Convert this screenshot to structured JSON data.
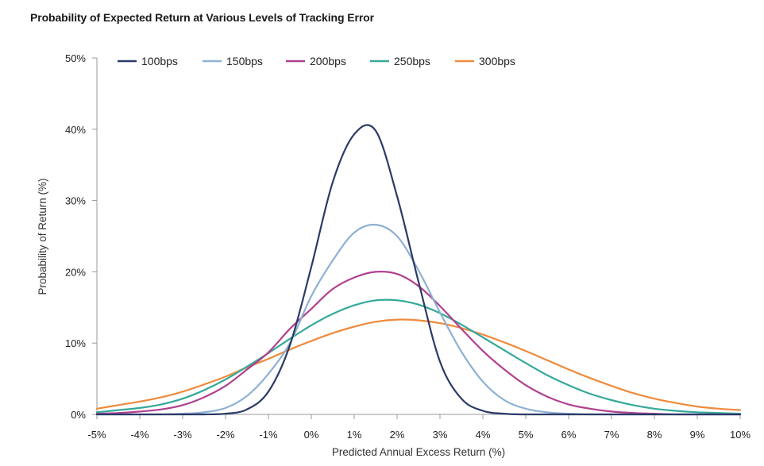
{
  "chart_data": {
    "type": "line",
    "title": "Probability of Expected Return at Various Levels of Tracking Error",
    "xlabel": "Predicted Annual Excess Return (%)",
    "ylabel": "Probability of Return (%)",
    "xlim": [
      -5,
      10
    ],
    "ylim": [
      0,
      50
    ],
    "x_ticks": [
      -5,
      -4,
      -3,
      -2,
      -1,
      0,
      1,
      2,
      3,
      4,
      5,
      6,
      7,
      8,
      9,
      10
    ],
    "x_tick_labels": [
      "-5%",
      "-4%",
      "-3%",
      "-2%",
      "-1%",
      "0%",
      "1%",
      "2%",
      "3%",
      "4%",
      "5%",
      "6%",
      "7%",
      "8%",
      "9%",
      "10%"
    ],
    "y_ticks": [
      0,
      10,
      20,
      30,
      40,
      50
    ],
    "y_tick_labels": [
      "0%",
      "10%",
      "20%",
      "30%",
      "40%",
      "50%"
    ],
    "grid": false,
    "legend_position": "top",
    "x": [
      -5,
      -4.5,
      -4,
      -3.5,
      -3,
      -2.5,
      -2,
      -1.5,
      -1,
      -0.5,
      0,
      0.5,
      1,
      1.5,
      2,
      2.5,
      3,
      3.5,
      4,
      4.5,
      5,
      5.5,
      6,
      6.5,
      7,
      7.5,
      8,
      8.5,
      9,
      9.5,
      10
    ],
    "series": [
      {
        "name": "100bps",
        "color": "#2b3a67",
        "values": [
          0,
          0,
          0,
          0,
          0,
          0,
          0.1,
          0.7,
          3.2,
          9.7,
          20.7,
          32.6,
          39.3,
          39.8,
          30.6,
          18.6,
          7.4,
          2.2,
          0.5,
          0.1,
          0,
          0,
          0,
          0,
          0,
          0,
          0,
          0,
          0,
          0,
          0
        ]
      },
      {
        "name": "150bps",
        "color": "#8eb1d3",
        "values": [
          0,
          0,
          0,
          0,
          0.1,
          0.3,
          0.9,
          2.6,
          5.7,
          10.0,
          16.6,
          21.6,
          25.5,
          26.6,
          25.0,
          20.2,
          14.3,
          8.8,
          4.6,
          2.0,
          0.8,
          0.3,
          0.1,
          0,
          0,
          0,
          0,
          0,
          0,
          0,
          0
        ]
      },
      {
        "name": "200bps",
        "color": "#b0408f",
        "values": [
          0.1,
          0.2,
          0.4,
          0.7,
          1.3,
          2.4,
          4.0,
          6.3,
          8.7,
          12.0,
          14.8,
          17.6,
          19.2,
          20.0,
          19.7,
          18.0,
          15.2,
          12.0,
          8.9,
          6.3,
          4.1,
          2.5,
          1.4,
          0.8,
          0.4,
          0.2,
          0.1,
          0,
          0,
          0,
          0
        ]
      },
      {
        "name": "250bps",
        "color": "#34a99a",
        "values": [
          0.3,
          0.6,
          0.9,
          1.4,
          2.2,
          3.4,
          4.9,
          6.7,
          8.6,
          10.6,
          12.5,
          14.1,
          15.3,
          16.0,
          16.0,
          15.4,
          14.2,
          12.6,
          10.8,
          9.0,
          7.2,
          5.5,
          4.1,
          2.9,
          2.0,
          1.3,
          0.8,
          0.5,
          0.3,
          0.2,
          0.1
        ]
      },
      {
        "name": "300bps",
        "color": "#ee8a3c",
        "values": [
          0.8,
          1.3,
          1.8,
          2.4,
          3.2,
          4.2,
          5.3,
          6.6,
          7.8,
          9.1,
          10.3,
          11.4,
          12.3,
          13.0,
          13.3,
          13.2,
          12.8,
          12.1,
          11.2,
          10.1,
          8.9,
          7.6,
          6.3,
          5.1,
          4.0,
          3.0,
          2.2,
          1.6,
          1.1,
          0.8,
          0.6
        ]
      }
    ]
  }
}
